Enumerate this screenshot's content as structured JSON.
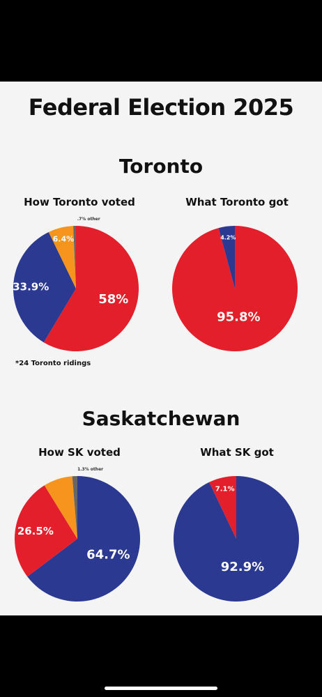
{
  "title": "Federal Election 2025",
  "colors": {
    "liberal": "#e31f2b",
    "conservative": "#2b3990",
    "ndp": "#f7941d",
    "other": "#666666",
    "label": "#ffffff",
    "note_text": "#333333"
  },
  "sections": [
    {
      "title": "Toronto",
      "note": "*24 Toronto ridings",
      "pies": [
        {
          "title": "How Toronto voted"
        },
        {
          "title": "What Toronto got"
        }
      ]
    },
    {
      "title": "Saskatchewan",
      "pies": [
        {
          "title": "How SK voted"
        },
        {
          "title": "What SK got"
        }
      ]
    }
  ],
  "chart_data": [
    {
      "type": "pie",
      "title": "How Toronto voted",
      "slices": [
        {
          "label": "58%",
          "value": 58.0,
          "color": "#e31f2b"
        },
        {
          "label": "33.9%",
          "value": 33.9,
          "color": "#2b3990"
        },
        {
          "label": "6.4%",
          "value": 6.4,
          "color": "#f7941d"
        },
        {
          "label": ".7% other",
          "value": 0.7,
          "color": "#666666"
        }
      ]
    },
    {
      "type": "pie",
      "title": "What Toronto got",
      "slices": [
        {
          "label": "95.8%",
          "value": 95.8,
          "color": "#e31f2b"
        },
        {
          "label": "4.2%",
          "value": 4.2,
          "color": "#2b3990"
        }
      ]
    },
    {
      "type": "pie",
      "title": "How SK voted",
      "slices": [
        {
          "label": "64.7%",
          "value": 64.7,
          "color": "#2b3990"
        },
        {
          "label": "26.5%",
          "value": 26.5,
          "color": "#e31f2b"
        },
        {
          "label": "",
          "value": 7.5,
          "color": "#f7941d"
        },
        {
          "label": "1.3% other",
          "value": 1.3,
          "color": "#666666"
        }
      ]
    },
    {
      "type": "pie",
      "title": "What SK got",
      "slices": [
        {
          "label": "92.9%",
          "value": 92.9,
          "color": "#2b3990"
        },
        {
          "label": "7.1%",
          "value": 7.1,
          "color": "#e31f2b"
        }
      ]
    }
  ]
}
